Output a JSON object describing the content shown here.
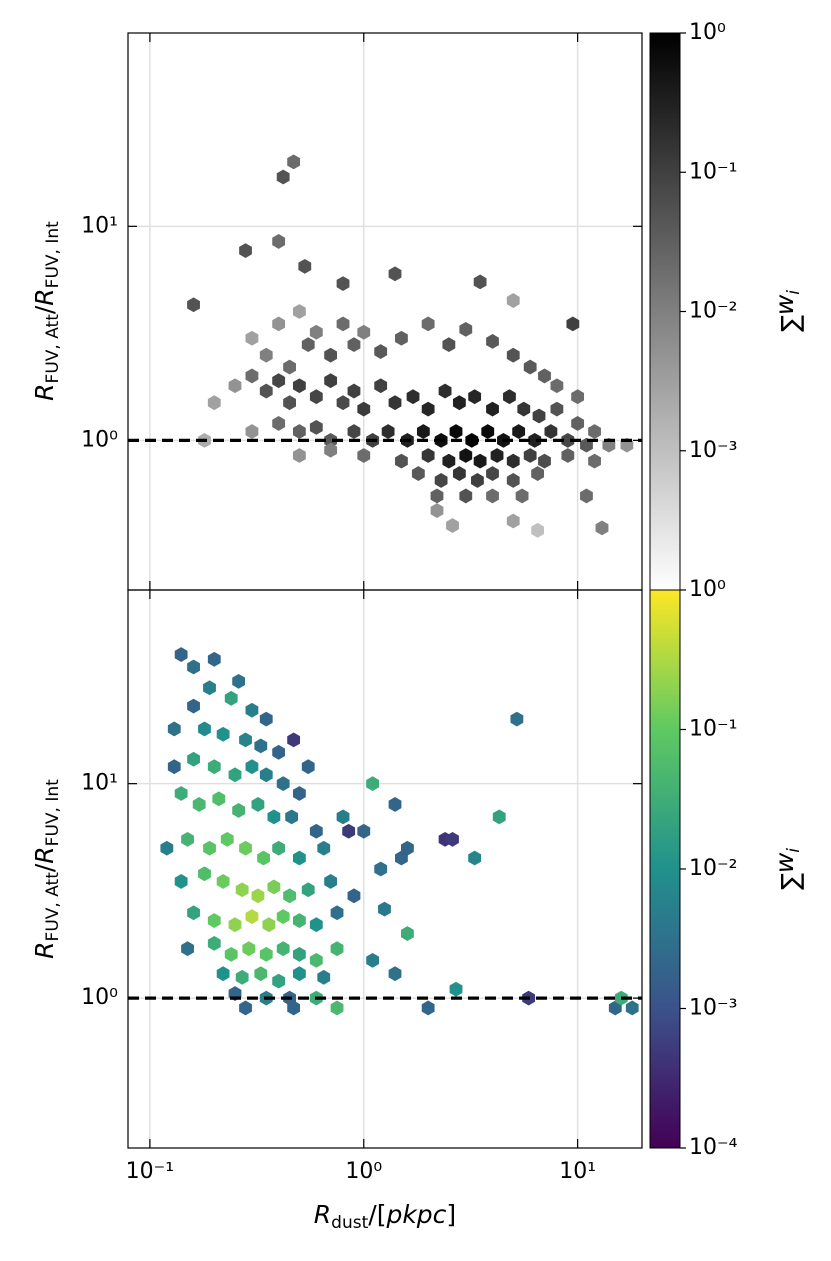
{
  "chart_data": [
    {
      "type": "hexbin",
      "cmap": "Greys",
      "log_x": true,
      "log_y": true,
      "grid": true,
      "hline": 1,
      "y_label": [
        "R",
        "FUV, Att",
        "/",
        "R",
        "FUV, Int"
      ],
      "xlim": [
        0.079,
        20
      ],
      "ylim": [
        0.2,
        80
      ],
      "xticks": [
        0.1,
        1,
        10
      ],
      "yticks": [
        {
          "value": 1,
          "label": "10⁰"
        },
        {
          "value": 10,
          "label": "10¹"
        }
      ],
      "colorbar": {
        "lim": [
          0.0001,
          1
        ],
        "ticks": [
          {
            "value": 1,
            "label": "10⁰"
          },
          {
            "value": 0.1,
            "label": "10⁻¹"
          },
          {
            "value": 0.01,
            "label": "10⁻²"
          },
          {
            "value": 0.001,
            "label": "10⁻³"
          }
        ],
        "label": [
          "∑",
          "w",
          "i"
        ]
      },
      "x": [
        0.16,
        0.28,
        0.42,
        0.47,
        0.4,
        0.53,
        0.8,
        1.4,
        3.5,
        9.5,
        5,
        0.3,
        0.35,
        0.4,
        0.45,
        0.5,
        0.55,
        0.6,
        0.7,
        0.8,
        0.9,
        1.0,
        1.2,
        1.5,
        2.0,
        2.5,
        3.0,
        4,
        5,
        6,
        7,
        8,
        10,
        0.2,
        0.25,
        0.3,
        0.35,
        0.4,
        0.45,
        0.5,
        0.6,
        0.7,
        0.8,
        0.9,
        1.0,
        1.2,
        1.4,
        1.7,
        2.0,
        2.4,
        2.8,
        3.3,
        4.0,
        4.8,
        5.6,
        6.6,
        8,
        10,
        12,
        0.18,
        0.3,
        0.4,
        0.5,
        0.6,
        0.7,
        0.9,
        1.1,
        1.3,
        1.6,
        1.9,
        2.3,
        2.7,
        3.2,
        3.8,
        4.5,
        5.3,
        6.3,
        7.5,
        9,
        11,
        14,
        17,
        0.5,
        0.7,
        1.0,
        1.5,
        2,
        2.5,
        3,
        3.5,
        4.2,
        5,
        6,
        7,
        9,
        12,
        1.8,
        2.3,
        2.8,
        3.4,
        4,
        5,
        6.5,
        2.2,
        3,
        4,
        5.5,
        11,
        2.2,
        2.6,
        5,
        6.5,
        13
      ],
      "y": [
        4.3,
        7.7,
        17,
        20,
        8.5,
        6.5,
        5.4,
        6,
        5.5,
        3.5,
        4.5,
        3,
        2.5,
        3.5,
        2.2,
        4,
        2.8,
        3.2,
        2.5,
        3.5,
        2.8,
        3.2,
        2.6,
        3.0,
        3.5,
        2.8,
        3.3,
        2.9,
        2.5,
        2.2,
        2.0,
        1.8,
        1.6,
        1.5,
        1.8,
        2.0,
        1.7,
        1.9,
        1.5,
        1.8,
        1.6,
        1.9,
        1.5,
        1.7,
        1.4,
        1.8,
        1.5,
        1.6,
        1.4,
        1.7,
        1.5,
        1.6,
        1.4,
        1.6,
        1.4,
        1.3,
        1.4,
        1.2,
        1.1,
        1.0,
        1.1,
        1.2,
        1.1,
        1.15,
        1.0,
        1.1,
        1.0,
        1.1,
        1.0,
        1.1,
        1.0,
        1.1,
        1.0,
        1.1,
        1.0,
        1.1,
        1.0,
        1.1,
        1.0,
        0.95,
        0.95,
        0.95,
        0.85,
        0.9,
        0.85,
        0.8,
        0.85,
        0.8,
        0.85,
        0.8,
        0.85,
        0.8,
        0.85,
        0.8,
        0.85,
        0.8,
        0.7,
        0.65,
        0.7,
        0.65,
        0.7,
        0.65,
        0.7,
        0.55,
        0.55,
        0.55,
        0.55,
        0.55,
        0.47,
        0.4,
        0.42,
        0.38,
        0.39
      ],
      "values": [
        0.05,
        0.05,
        0.05,
        0.02,
        0.02,
        0.05,
        0.05,
        0.05,
        0.05,
        0.1,
        0.003,
        0.003,
        0.01,
        0.005,
        0.02,
        0.003,
        0.03,
        0.01,
        0.05,
        0.02,
        0.03,
        0.01,
        0.04,
        0.03,
        0.02,
        0.05,
        0.03,
        0.04,
        0.05,
        0.04,
        0.03,
        0.02,
        0.02,
        0.003,
        0.005,
        0.02,
        0.05,
        0.08,
        0.05,
        0.1,
        0.08,
        0.1,
        0.07,
        0.1,
        0.12,
        0.1,
        0.15,
        0.2,
        0.25,
        0.2,
        0.3,
        0.25,
        0.3,
        0.2,
        0.15,
        0.1,
        0.05,
        0.03,
        0.02,
        0.002,
        0.005,
        0.02,
        0.03,
        0.05,
        0.04,
        0.08,
        0.1,
        0.2,
        0.3,
        0.4,
        0.6,
        0.7,
        0.9,
        0.7,
        0.5,
        0.4,
        0.3,
        0.15,
        0.08,
        0.04,
        0.01,
        0.005,
        0.005,
        0.01,
        0.02,
        0.05,
        0.15,
        0.3,
        0.5,
        0.4,
        0.3,
        0.2,
        0.1,
        0.06,
        0.03,
        0.02,
        0.04,
        0.08,
        0.15,
        0.1,
        0.08,
        0.05,
        0.03,
        0.03,
        0.05,
        0.02,
        0.02,
        0.02,
        0.005,
        0.003,
        0.003,
        0.001,
        0.01
      ]
    },
    {
      "type": "hexbin",
      "cmap": "viridis",
      "log_x": true,
      "log_y": true,
      "grid": true,
      "hline": 1,
      "y_label": [
        "R",
        "FUV, Att",
        "/",
        "R",
        "FUV, Int"
      ],
      "x_label": [
        "R",
        "dust",
        "/[",
        "pkpc",
        "]"
      ],
      "xlim": [
        0.079,
        20
      ],
      "ylim": [
        0.2,
        80
      ],
      "xticks": [
        {
          "value": 0.1,
          "label": "10⁻¹"
        },
        {
          "value": 1,
          "label": "10⁰"
        },
        {
          "value": 10,
          "label": "10¹"
        }
      ],
      "yticks": [
        {
          "value": 1,
          "label": "10⁰"
        },
        {
          "value": 10,
          "label": "10¹"
        }
      ],
      "colorbar": {
        "lim": [
          0.0001,
          1
        ],
        "ticks": [
          {
            "value": 1,
            "label": "10⁰"
          },
          {
            "value": 0.1,
            "label": "10⁻¹"
          },
          {
            "value": 0.01,
            "label": "10⁻²"
          },
          {
            "value": 0.001,
            "label": "10⁻³"
          },
          {
            "value": 0.0001,
            "label": "10⁻⁴"
          }
        ],
        "label": [
          "∑",
          "w",
          "i"
        ]
      },
      "x": [
        0.14,
        0.16,
        0.2,
        0.26,
        0.19,
        0.24,
        0.3,
        0.35,
        0.16,
        0.13,
        0.18,
        0.22,
        0.28,
        0.33,
        0.4,
        0.13,
        0.16,
        0.2,
        0.25,
        0.3,
        0.35,
        0.42,
        0.5,
        0.14,
        0.17,
        0.21,
        0.26,
        0.32,
        0.38,
        0.46,
        0.6,
        0.12,
        0.15,
        0.19,
        0.23,
        0.28,
        0.34,
        0.4,
        0.5,
        0.65,
        0.8,
        1.0,
        0.14,
        0.18,
        0.22,
        0.27,
        0.32,
        0.38,
        0.45,
        0.55,
        0.7,
        1.2,
        1.5,
        0.16,
        0.2,
        0.25,
        0.3,
        0.36,
        0.42,
        0.5,
        0.6,
        0.75,
        0.9,
        0.15,
        0.2,
        0.24,
        0.29,
        0.35,
        0.42,
        0.5,
        0.6,
        0.75,
        0.22,
        0.27,
        0.33,
        0.4,
        0.5,
        0.65,
        0.25,
        0.35,
        0.45,
        0.6,
        0.28,
        0.47,
        0.75,
        1.1,
        1.4,
        2,
        1.1,
        1.4,
        1.6,
        2.4,
        3.3,
        4.3,
        5.2,
        2.7,
        1.6,
        5.9,
        15,
        16,
        18,
        0.55,
        0.47,
        0.85,
        2.6,
        1.25
      ],
      "y": [
        40,
        35,
        38,
        30,
        28,
        25,
        22,
        20,
        23,
        18,
        18,
        17,
        16,
        15,
        14,
        12,
        13,
        12,
        11,
        12,
        11,
        10,
        9,
        9,
        8,
        8.5,
        7.5,
        8,
        7,
        7,
        6,
        5,
        5.5,
        5,
        5.5,
        5,
        4.5,
        5,
        4.5,
        5,
        7,
        6,
        3.5,
        3.8,
        3.5,
        3.2,
        3.0,
        3.3,
        3.0,
        3.2,
        3.5,
        4,
        4.5,
        2.5,
        2.3,
        2.2,
        2.4,
        2.2,
        2.4,
        2.3,
        2.2,
        2.5,
        3,
        1.7,
        1.8,
        1.6,
        1.7,
        1.6,
        1.7,
        1.6,
        1.5,
        1.7,
        1.3,
        1.25,
        1.3,
        1.2,
        1.3,
        1.25,
        1.05,
        1.0,
        1.0,
        1.0,
        0.9,
        0.9,
        0.9,
        1.5,
        1.3,
        0.9,
        10,
        8,
        5,
        5.5,
        4.5,
        7,
        20,
        1.1,
        2,
        1.0,
        0.9,
        1.0,
        0.9,
        12,
        16,
        6,
        5.5,
        2.6
      ],
      "values": [
        0.002,
        0.003,
        0.002,
        0.003,
        0.005,
        0.02,
        0.005,
        0.002,
        0.002,
        0.003,
        0.008,
        0.01,
        0.006,
        0.003,
        0.002,
        0.002,
        0.02,
        0.03,
        0.02,
        0.01,
        0.005,
        0.003,
        0.002,
        0.03,
        0.05,
        0.06,
        0.04,
        0.02,
        0.01,
        0.004,
        0.002,
        0.005,
        0.04,
        0.08,
        0.1,
        0.12,
        0.08,
        0.03,
        0.01,
        0.005,
        0.005,
        0.002,
        0.01,
        0.06,
        0.12,
        0.2,
        0.25,
        0.15,
        0.06,
        0.02,
        0.005,
        0.003,
        0.002,
        0.02,
        0.1,
        0.2,
        0.35,
        0.2,
        0.1,
        0.04,
        0.01,
        0.003,
        0.002,
        0.003,
        0.03,
        0.08,
        0.12,
        0.08,
        0.04,
        0.02,
        0.05,
        0.04,
        0.01,
        0.03,
        0.05,
        0.02,
        0.01,
        0.005,
        0.002,
        0.005,
        0.002,
        0.03,
        0.002,
        0.002,
        0.05,
        0.005,
        0.003,
        0.002,
        0.03,
        0.002,
        0.002,
        0.0004,
        0.006,
        0.02,
        0.003,
        0.01,
        0.03,
        0.0005,
        0.002,
        0.03,
        0.003,
        0.002,
        0.0005,
        0.0005,
        0.0005,
        0.004
      ]
    }
  ]
}
